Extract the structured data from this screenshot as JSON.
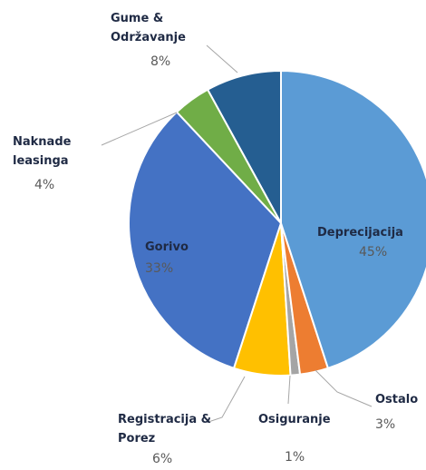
{
  "chart_data": {
    "type": "pie",
    "categories": [
      "Deprecijacija",
      "Ostalo",
      "Osiguranje",
      "Registracija & Porez",
      "Gorivo",
      "Naknade leasinga",
      "Gume & Održavanje"
    ],
    "values": [
      45,
      3,
      1,
      6,
      33,
      4,
      8
    ],
    "value_labels": [
      "45%",
      "3%",
      "1%",
      "6%",
      "33%",
      "4%",
      "8%"
    ],
    "colors": [
      "#5b9bd5",
      "#ed7d31",
      "#a5a5a5",
      "#ffc000",
      "#4472c4",
      "#70ad47",
      "#255e91"
    ]
  }
}
